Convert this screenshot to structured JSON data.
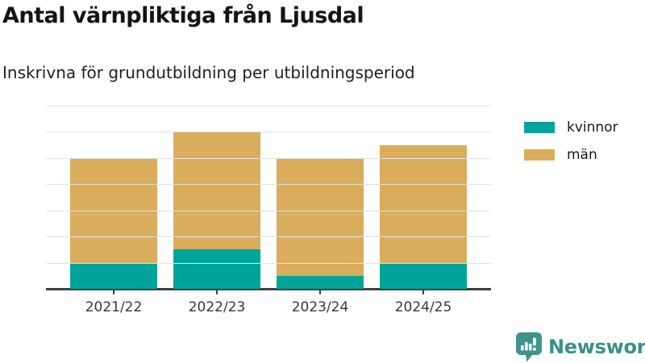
{
  "header": {
    "title": "Antal värnpliktiga från Ljusdal",
    "subtitle": "Inskrivna för grundutbildning per utbildningsperiod"
  },
  "chart_data": {
    "type": "bar",
    "stacked": true,
    "title": "Antal värnpliktiga från Ljusdal",
    "subtitle": "Inskrivna för grundutbildning per utbildningsperiod",
    "categories": [
      "2021/22",
      "2022/23",
      "2023/24",
      "2024/25"
    ],
    "series": [
      {
        "name": "kvinnor",
        "color": "#00a49a",
        "values": [
          2,
          3,
          1,
          2
        ]
      },
      {
        "name": "män",
        "color": "#d9ad5c",
        "values": [
          8,
          9,
          9,
          9
        ]
      }
    ],
    "totals": [
      10,
      12,
      10,
      11
    ],
    "xlabel": "",
    "ylabel": "",
    "ylim": [
      0,
      14
    ],
    "yticks": [
      0,
      2,
      4,
      6,
      8,
      10,
      12,
      14
    ],
    "grid": true,
    "legend_position": "right"
  },
  "colors": {
    "grid": "#e2e2e2",
    "axis": "#3f3f3f",
    "tick_text": "#383838"
  },
  "branding": {
    "label": "Newsworthy",
    "color": "#39918a",
    "icon": "newsworthy-logo-icon"
  }
}
